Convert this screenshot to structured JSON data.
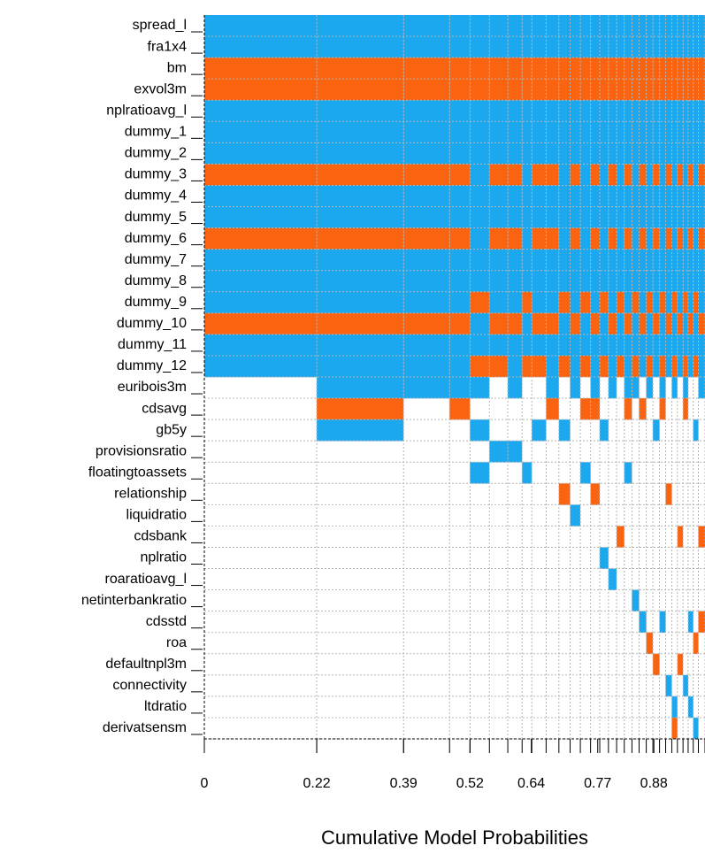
{
  "chart_data": {
    "type": "model-inclusion",
    "xlabel": "Cumulative Model Probabilities",
    "variables": [
      "spread_l",
      "fra1x4",
      "bm",
      "exvol3m",
      "nplratioavg_l",
      "dummy_1",
      "dummy_2",
      "dummy_3",
      "dummy_4",
      "dummy_5",
      "dummy_6",
      "dummy_7",
      "dummy_8",
      "dummy_9",
      "dummy_10",
      "dummy_11",
      "dummy_12",
      "euribois3m",
      "cdsavg",
      "gb5y",
      "provisionsratio",
      "floatingtoassets",
      "relationship",
      "liquidratio",
      "cdsbank",
      "nplratio",
      "roaratioavg_l",
      "netinterbankratio",
      "cdsstd",
      "roa",
      "defaultnpl3m",
      "connectivity",
      "ltdratio",
      "derivatsensm"
    ],
    "positive_color": "#1ca8ef",
    "negative_color": "#fa6410",
    "xlim": [
      0,
      0.98
    ],
    "xticks": [
      0,
      0.22,
      0.39,
      0.52,
      0.64,
      0.77,
      0.88
    ],
    "grid": true,
    "models": [
      {
        "prob": 0.22,
        "signs": [
          1,
          1,
          -1,
          -1,
          1,
          1,
          1,
          -1,
          1,
          1,
          -1,
          1,
          1,
          1,
          -1,
          1,
          1,
          0,
          0,
          0,
          0,
          0,
          0,
          0,
          0,
          0,
          0,
          0,
          0,
          0,
          0,
          0,
          0,
          0
        ]
      },
      {
        "prob": 0.17,
        "signs": [
          1,
          1,
          -1,
          -1,
          1,
          1,
          1,
          -1,
          1,
          1,
          -1,
          1,
          1,
          1,
          -1,
          1,
          1,
          1,
          -1,
          1,
          0,
          0,
          0,
          0,
          0,
          0,
          0,
          0,
          0,
          0,
          0,
          0,
          0,
          0
        ]
      },
      {
        "prob": 0.09,
        "signs": [
          1,
          1,
          -1,
          -1,
          1,
          1,
          1,
          -1,
          1,
          1,
          -1,
          1,
          1,
          1,
          -1,
          1,
          1,
          1,
          0,
          0,
          0,
          0,
          0,
          0,
          0,
          0,
          0,
          0,
          0,
          0,
          0,
          0,
          0,
          0
        ]
      },
      {
        "prob": 0.04,
        "signs": [
          1,
          1,
          -1,
          -1,
          1,
          1,
          1,
          -1,
          1,
          1,
          -1,
          1,
          1,
          1,
          -1,
          1,
          1,
          1,
          -1,
          0,
          0,
          0,
          0,
          0,
          0,
          0,
          0,
          0,
          0,
          0,
          0,
          0,
          0,
          0
        ]
      },
      {
        "prob": 0.038,
        "signs": [
          1,
          1,
          -1,
          -1,
          1,
          1,
          1,
          1,
          1,
          1,
          1,
          1,
          1,
          -1,
          1,
          1,
          -1,
          1,
          0,
          1,
          0,
          1,
          0,
          0,
          0,
          0,
          0,
          0,
          0,
          0,
          0,
          0,
          0,
          0
        ]
      },
      {
        "prob": 0.036,
        "signs": [
          1,
          1,
          -1,
          -1,
          1,
          1,
          1,
          -1,
          1,
          1,
          -1,
          1,
          1,
          1,
          -1,
          1,
          -1,
          0,
          0,
          0,
          1,
          0,
          0,
          0,
          0,
          0,
          0,
          0,
          0,
          0,
          0,
          0,
          0,
          0
        ]
      },
      {
        "prob": 0.028,
        "signs": [
          1,
          1,
          -1,
          -1,
          1,
          1,
          1,
          -1,
          1,
          1,
          -1,
          1,
          1,
          1,
          -1,
          1,
          1,
          1,
          0,
          0,
          1,
          0,
          0,
          0,
          0,
          0,
          0,
          0,
          0,
          0,
          0,
          0,
          0,
          0
        ]
      },
      {
        "prob": 0.019,
        "signs": [
          1,
          1,
          -1,
          -1,
          1,
          1,
          1,
          1,
          1,
          1,
          1,
          1,
          1,
          -1,
          1,
          1,
          -1,
          0,
          0,
          0,
          0,
          1,
          0,
          0,
          0,
          0,
          0,
          0,
          0,
          0,
          0,
          0,
          0,
          0
        ]
      },
      {
        "prob": 0.028,
        "signs": [
          1,
          1,
          -1,
          -1,
          1,
          1,
          1,
          -1,
          1,
          1,
          -1,
          1,
          1,
          1,
          -1,
          1,
          -1,
          0,
          0,
          1,
          0,
          0,
          0,
          0,
          0,
          0,
          0,
          0,
          0,
          0,
          0,
          0,
          0,
          0
        ]
      },
      {
        "prob": 0.025,
        "signs": [
          1,
          1,
          -1,
          -1,
          1,
          1,
          1,
          -1,
          1,
          1,
          -1,
          1,
          1,
          1,
          -1,
          1,
          1,
          1,
          -1,
          0,
          0,
          0,
          0,
          0,
          0,
          0,
          0,
          0,
          0,
          0,
          0,
          0,
          0,
          0
        ]
      },
      {
        "prob": 0.022,
        "signs": [
          1,
          1,
          -1,
          -1,
          1,
          1,
          1,
          1,
          1,
          1,
          1,
          1,
          1,
          -1,
          1,
          1,
          -1,
          0,
          0,
          1,
          0,
          0,
          -1,
          0,
          0,
          0,
          0,
          0,
          0,
          0,
          0,
          0,
          0,
          0
        ]
      },
      {
        "prob": 0.02,
        "signs": [
          1,
          1,
          -1,
          -1,
          1,
          1,
          1,
          -1,
          1,
          1,
          -1,
          1,
          1,
          1,
          -1,
          1,
          1,
          1,
          0,
          0,
          0,
          0,
          0,
          1,
          0,
          0,
          0,
          0,
          0,
          0,
          0,
          0,
          0,
          0
        ]
      },
      {
        "prob": 0.02,
        "signs": [
          1,
          1,
          -1,
          -1,
          1,
          1,
          1,
          1,
          1,
          1,
          1,
          1,
          1,
          -1,
          1,
          1,
          -1,
          0,
          -1,
          0,
          0,
          1,
          0,
          0,
          0,
          0,
          0,
          0,
          0,
          0,
          0,
          0,
          0,
          0
        ]
      },
      {
        "prob": 0.018,
        "signs": [
          1,
          1,
          -1,
          -1,
          1,
          1,
          1,
          -1,
          1,
          1,
          -1,
          1,
          1,
          1,
          -1,
          1,
          1,
          1,
          -1,
          0,
          0,
          0,
          -1,
          0,
          0,
          0,
          0,
          0,
          0,
          0,
          0,
          0,
          0,
          0
        ]
      },
      {
        "prob": 0.017,
        "signs": [
          1,
          1,
          -1,
          -1,
          1,
          1,
          1,
          1,
          1,
          1,
          1,
          1,
          1,
          -1,
          1,
          1,
          -1,
          0,
          0,
          1,
          0,
          0,
          0,
          0,
          0,
          1,
          0,
          0,
          0,
          0,
          0,
          0,
          0,
          0
        ]
      },
      {
        "prob": 0.016,
        "signs": [
          1,
          1,
          -1,
          -1,
          1,
          1,
          1,
          -1,
          1,
          1,
          -1,
          1,
          1,
          1,
          -1,
          1,
          1,
          1,
          0,
          0,
          0,
          0,
          0,
          0,
          0,
          0,
          1,
          0,
          0,
          0,
          0,
          0,
          0,
          0
        ]
      },
      {
        "prob": 0.015,
        "signs": [
          1,
          1,
          -1,
          -1,
          1,
          1,
          1,
          1,
          1,
          1,
          1,
          1,
          1,
          -1,
          1,
          1,
          -1,
          0,
          0,
          0,
          0,
          0,
          0,
          0,
          -1,
          0,
          0,
          0,
          0,
          0,
          0,
          0,
          0,
          0
        ]
      },
      {
        "prob": 0.015,
        "signs": [
          1,
          1,
          -1,
          -1,
          1,
          1,
          1,
          -1,
          1,
          1,
          -1,
          1,
          1,
          1,
          -1,
          1,
          1,
          1,
          -1,
          0,
          0,
          1,
          0,
          0,
          0,
          0,
          0,
          0,
          0,
          0,
          0,
          0,
          0,
          0
        ]
      },
      {
        "prob": 0.014,
        "signs": [
          1,
          1,
          -1,
          -1,
          1,
          1,
          1,
          1,
          1,
          1,
          1,
          1,
          1,
          -1,
          1,
          1,
          -1,
          1,
          0,
          0,
          0,
          0,
          0,
          0,
          0,
          0,
          0,
          1,
          0,
          0,
          0,
          0,
          0,
          0
        ]
      },
      {
        "prob": 0.014,
        "signs": [
          1,
          1,
          -1,
          -1,
          1,
          1,
          1,
          -1,
          1,
          1,
          -1,
          1,
          1,
          1,
          -1,
          1,
          1,
          0,
          -1,
          0,
          0,
          0,
          0,
          0,
          0,
          0,
          0,
          0,
          1,
          0,
          0,
          0,
          0,
          0
        ]
      },
      {
        "prob": 0.013,
        "signs": [
          1,
          1,
          -1,
          -1,
          1,
          1,
          1,
          1,
          1,
          1,
          1,
          1,
          1,
          -1,
          1,
          1,
          -1,
          1,
          0,
          0,
          0,
          0,
          0,
          0,
          0,
          0,
          0,
          0,
          0,
          -1,
          0,
          0,
          0,
          0
        ]
      },
      {
        "prob": 0.013,
        "signs": [
          1,
          1,
          -1,
          -1,
          1,
          1,
          1,
          -1,
          1,
          1,
          -1,
          1,
          1,
          1,
          -1,
          1,
          1,
          0,
          0,
          1,
          0,
          0,
          0,
          0,
          0,
          0,
          0,
          0,
          0,
          0,
          -1,
          0,
          0,
          0
        ]
      },
      {
        "prob": 0.012,
        "signs": [
          1,
          1,
          -1,
          -1,
          1,
          1,
          1,
          1,
          1,
          1,
          1,
          1,
          1,
          -1,
          1,
          1,
          -1,
          1,
          -1,
          0,
          0,
          0,
          0,
          0,
          0,
          0,
          0,
          0,
          1,
          0,
          0,
          0,
          0,
          0
        ]
      },
      {
        "prob": 0.012,
        "signs": [
          1,
          1,
          -1,
          -1,
          1,
          1,
          1,
          -1,
          1,
          1,
          -1,
          1,
          1,
          1,
          -1,
          1,
          1,
          0,
          0,
          0,
          0,
          0,
          -1,
          0,
          0,
          0,
          0,
          0,
          0,
          0,
          0,
          1,
          0,
          0
        ]
      },
      {
        "prob": 0.011,
        "signs": [
          1,
          1,
          -1,
          -1,
          1,
          1,
          1,
          1,
          1,
          1,
          1,
          1,
          1,
          -1,
          1,
          1,
          -1,
          1,
          0,
          0,
          0,
          0,
          0,
          0,
          0,
          0,
          0,
          0,
          0,
          0,
          0,
          0,
          1,
          -1
        ]
      },
      {
        "prob": 0.011,
        "signs": [
          1,
          1,
          -1,
          -1,
          1,
          1,
          1,
          -1,
          1,
          1,
          -1,
          1,
          1,
          1,
          -1,
          1,
          1,
          0,
          0,
          0,
          0,
          0,
          0,
          0,
          -1,
          0,
          0,
          0,
          0,
          0,
          -1,
          0,
          0,
          0
        ]
      },
      {
        "prob": 0.01,
        "signs": [
          1,
          1,
          -1,
          -1,
          1,
          1,
          1,
          1,
          1,
          1,
          1,
          1,
          1,
          -1,
          1,
          1,
          -1,
          1,
          -1,
          0,
          0,
          0,
          0,
          0,
          0,
          0,
          0,
          0,
          0,
          0,
          0,
          1,
          0,
          0
        ]
      },
      {
        "prob": 0.01,
        "signs": [
          1,
          1,
          -1,
          -1,
          1,
          1,
          1,
          -1,
          1,
          1,
          -1,
          1,
          1,
          1,
          -1,
          1,
          1,
          0,
          0,
          0,
          0,
          0,
          0,
          0,
          0,
          0,
          0,
          0,
          1,
          0,
          0,
          0,
          1,
          0
        ]
      },
      {
        "prob": 0.01,
        "signs": [
          1,
          1,
          -1,
          -1,
          1,
          1,
          1,
          1,
          1,
          1,
          1,
          1,
          1,
          -1,
          1,
          1,
          -1,
          0,
          0,
          1,
          0,
          0,
          0,
          0,
          0,
          0,
          0,
          0,
          0,
          -1,
          0,
          0,
          0,
          1
        ]
      },
      {
        "prob": 0.013,
        "signs": [
          1,
          1,
          -1,
          -1,
          1,
          1,
          1,
          -1,
          1,
          1,
          -1,
          1,
          1,
          1,
          -1,
          1,
          1,
          1,
          0,
          0,
          0,
          0,
          0,
          0,
          -1,
          0,
          0,
          0,
          -1,
          0,
          0,
          0,
          0,
          0
        ]
      }
    ]
  }
}
